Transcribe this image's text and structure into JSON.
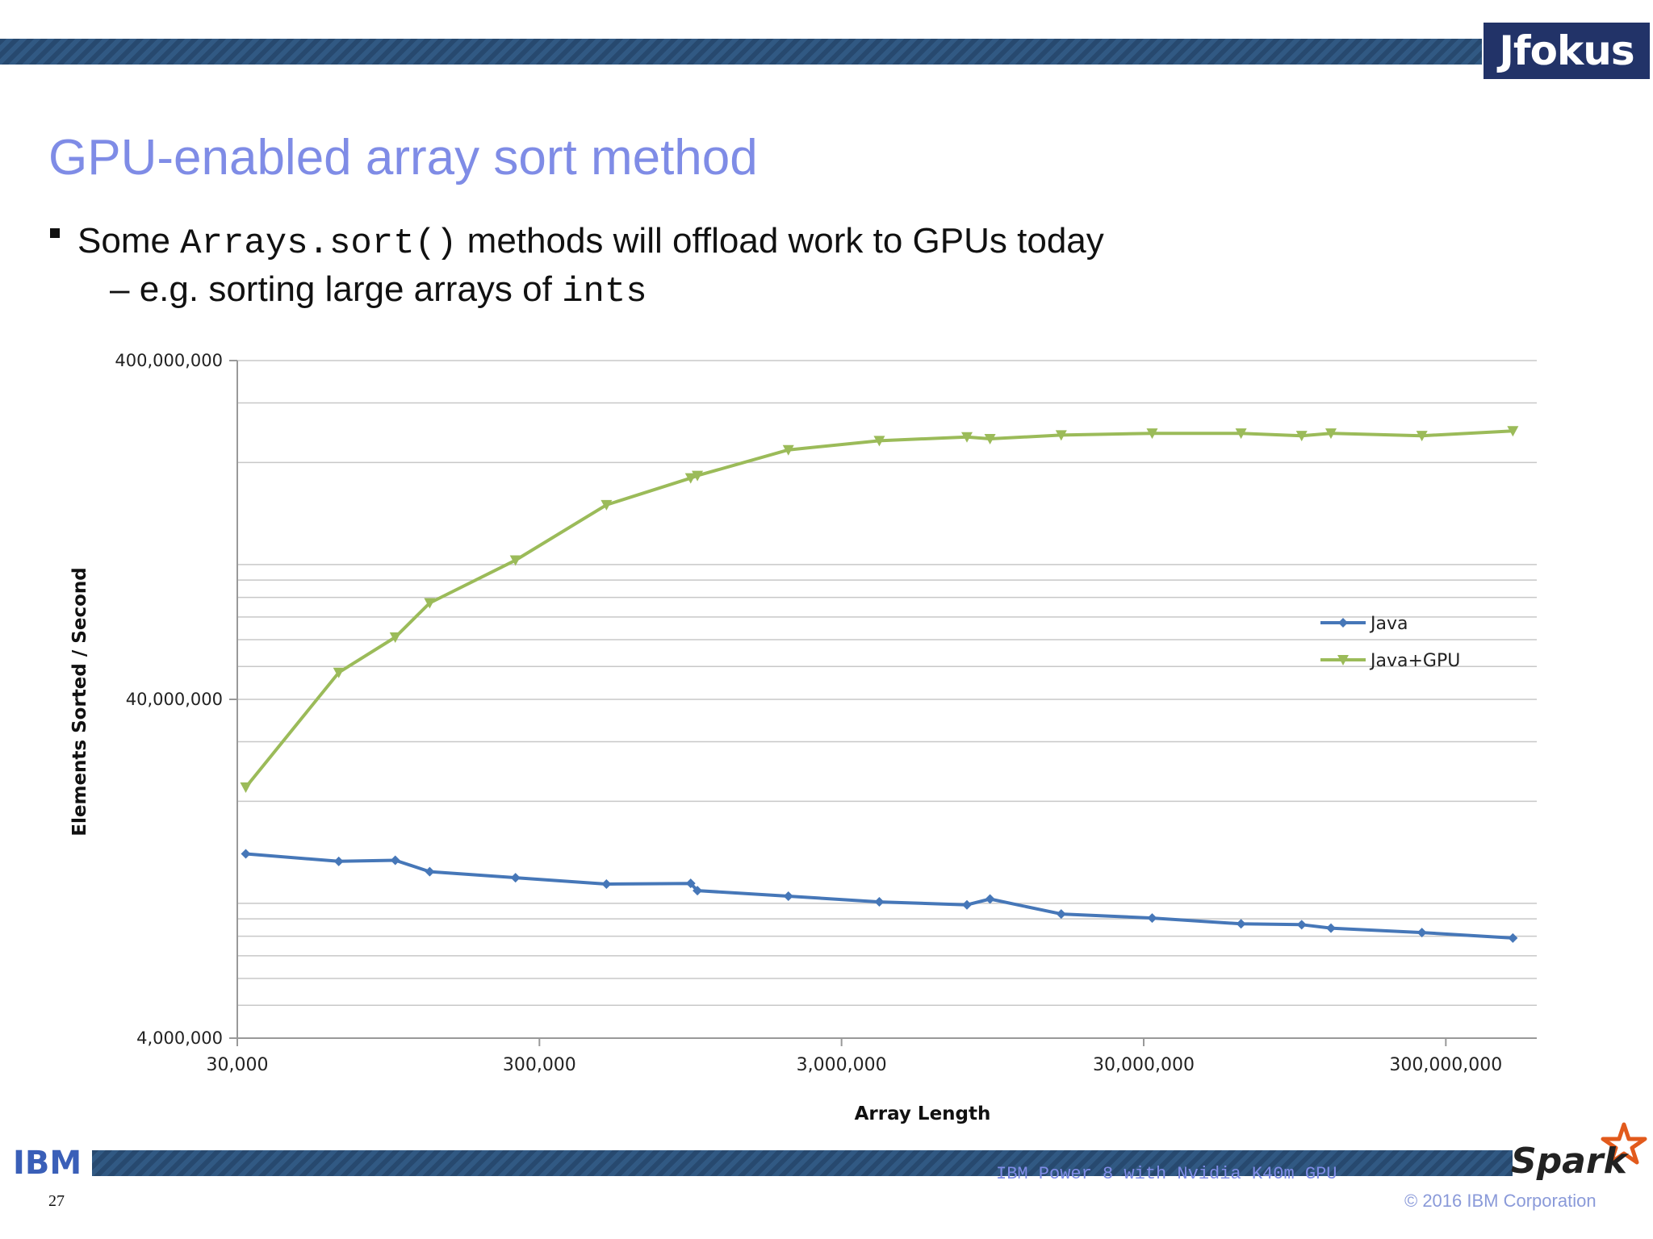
{
  "header": {
    "logo_text": "Jfokus"
  },
  "slide": {
    "title": "GPU-enabled array sort method",
    "bullet1": {
      "pre": "Some ",
      "code": "Arrays.sort()",
      "post": " methods will offload work to GPUs today"
    },
    "bullet2": {
      "dash": "– ",
      "pre": "e.g. sorting large arrays of ",
      "code": "ints"
    }
  },
  "chart_data": {
    "type": "line",
    "xlabel": "Array Length",
    "ylabel": "Elements Sorted / Second",
    "x_scale": "log",
    "y_scale": "log",
    "xlim": [
      30000,
      600000000
    ],
    "ylim": [
      4000000,
      400000000
    ],
    "x_ticks": [
      30000,
      300000,
      3000000,
      30000000,
      300000000
    ],
    "x_tick_labels": [
      "30,000",
      "300,000",
      "3,000,000",
      "30,000,000",
      "300,000,000"
    ],
    "y_ticks": [
      4000000,
      40000000,
      400000000
    ],
    "y_tick_labels": [
      "4,000,000",
      "40,000,000",
      "400,000,000"
    ],
    "grid": true,
    "legend_position": "right",
    "series": [
      {
        "name": "Java",
        "color": "#4677b8",
        "marker": "diamond",
        "points": [
          [
            32000,
            14000000
          ],
          [
            65000,
            13300000
          ],
          [
            100000,
            13400000
          ],
          [
            130000,
            12400000
          ],
          [
            250000,
            11900000
          ],
          [
            500000,
            11400000
          ],
          [
            950000,
            11450000
          ],
          [
            1000000,
            10900000
          ],
          [
            2000000,
            10500000
          ],
          [
            4000000,
            10100000
          ],
          [
            7800000,
            9900000
          ],
          [
            9300000,
            10300000
          ],
          [
            16000000,
            9300000
          ],
          [
            32000000,
            9050000
          ],
          [
            63000000,
            8700000
          ],
          [
            100000000,
            8650000
          ],
          [
            125000000,
            8450000
          ],
          [
            250000000,
            8200000
          ],
          [
            500000000,
            7900000
          ]
        ]
      },
      {
        "name": "Java+GPU",
        "color": "#9bbb59",
        "marker": "triangle-down",
        "points": [
          [
            32000,
            22000000
          ],
          [
            65000,
            48000000
          ],
          [
            100000,
            61000000
          ],
          [
            130000,
            77000000
          ],
          [
            250000,
            103000000
          ],
          [
            500000,
            150000000
          ],
          [
            950000,
            180000000
          ],
          [
            1000000,
            183000000
          ],
          [
            2000000,
            218000000
          ],
          [
            4000000,
            232000000
          ],
          [
            7800000,
            238000000
          ],
          [
            9300000,
            235000000
          ],
          [
            16000000,
            241000000
          ],
          [
            32000000,
            244000000
          ],
          [
            63000000,
            244000000
          ],
          [
            100000000,
            240000000
          ],
          [
            125000000,
            244000000
          ],
          [
            250000000,
            240000000
          ],
          [
            500000000,
            248000000
          ]
        ]
      }
    ]
  },
  "footer": {
    "company_logo": "IBM",
    "page_number": "27",
    "note": "IBM Power 8 with Nvidia K40m GPU",
    "copyright": "© 2016 IBM Corporation",
    "spark_logo": "Spark"
  }
}
